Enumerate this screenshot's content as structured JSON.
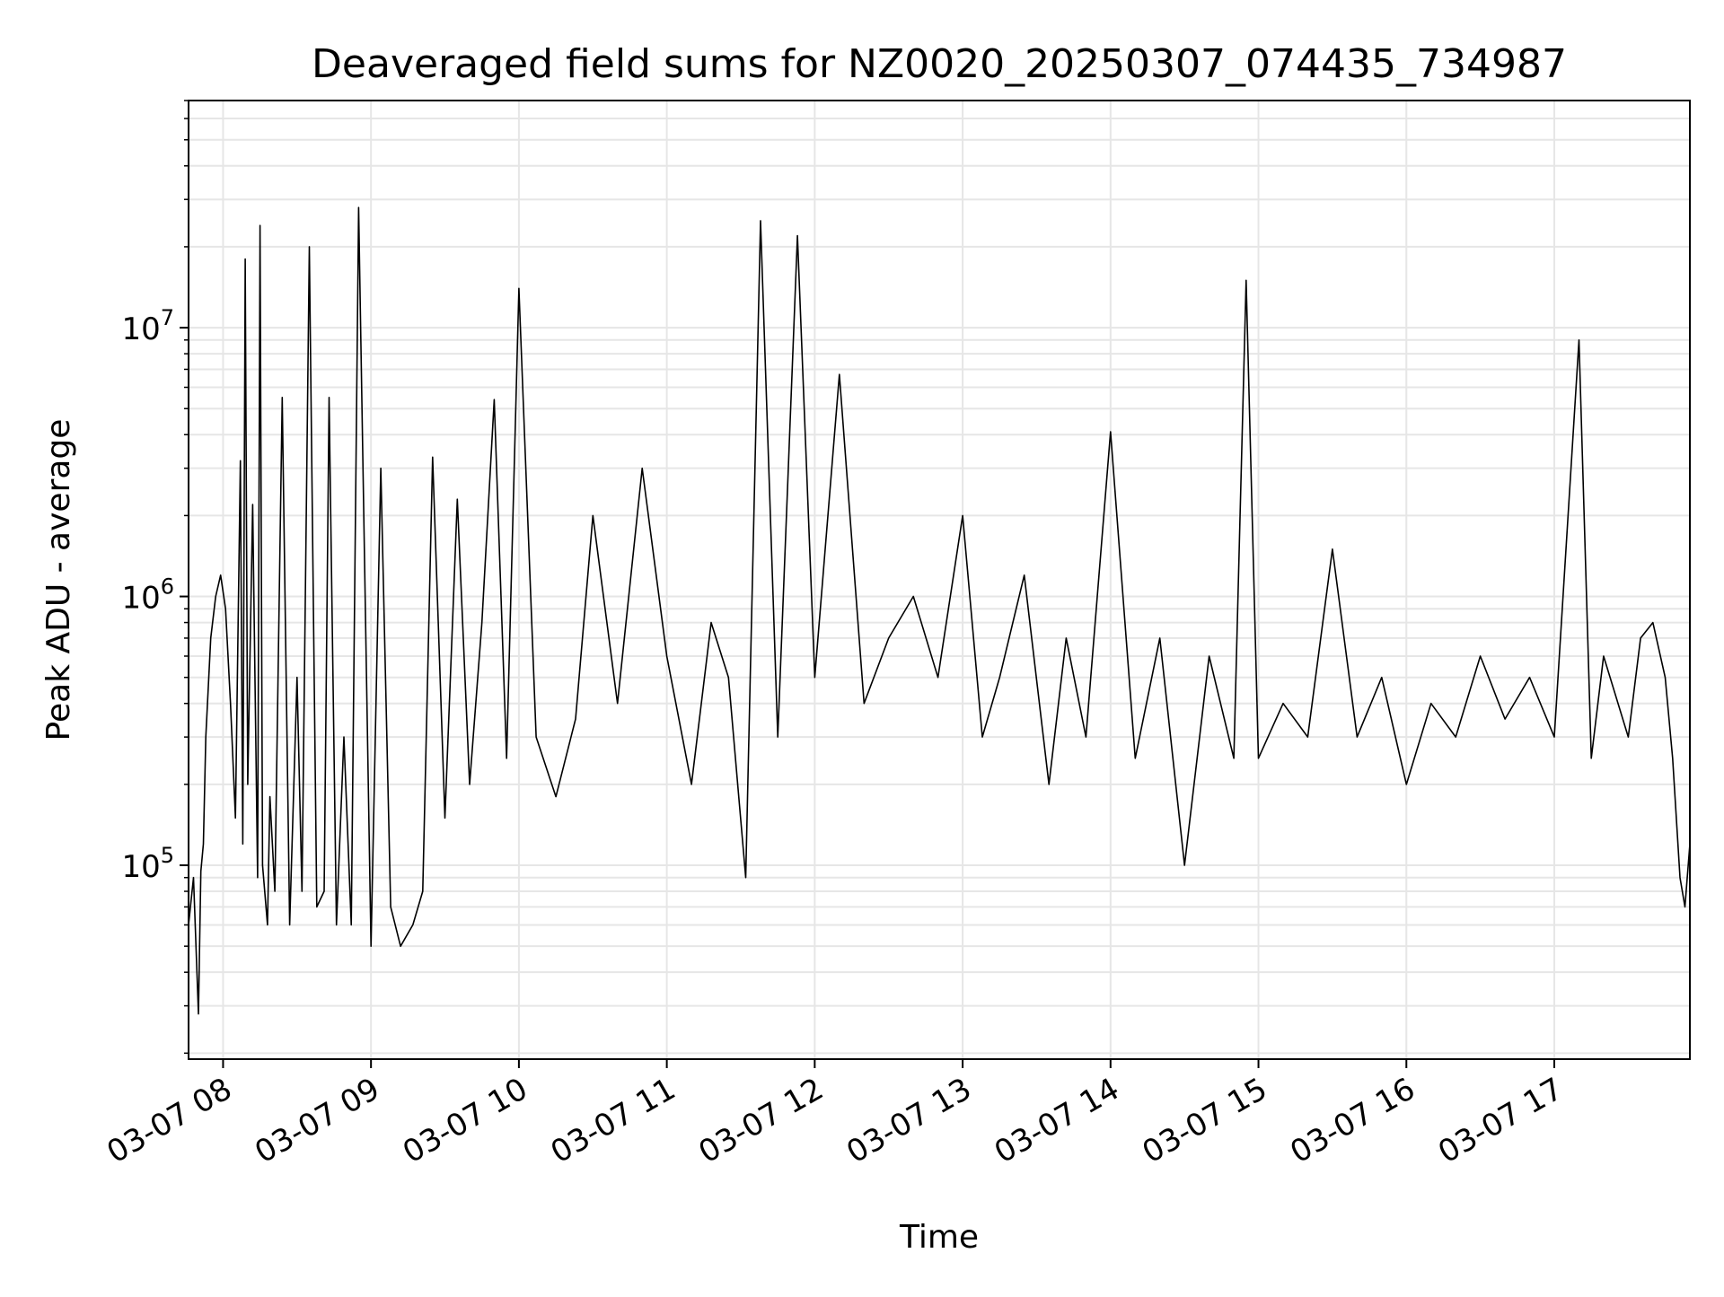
{
  "chart_data": {
    "type": "line",
    "title": "Deaveraged field sums for NZ0020_20250307_074435_734987",
    "xlabel": "Time",
    "ylabel": "Peak ADU - average",
    "x_scale": "time",
    "y_scale": "log",
    "xlim": [
      "2025-03-07 07:46",
      "2025-03-07 17:55"
    ],
    "ylim": [
      19000,
      70000000
    ],
    "grid": true,
    "legend": "none",
    "line_color": "#000000",
    "grid_color": "#e6e6e6",
    "x_ticks": [
      {
        "value": "2025-03-07 08:00",
        "label": "03-07 08"
      },
      {
        "value": "2025-03-07 09:00",
        "label": "03-07 09"
      },
      {
        "value": "2025-03-07 10:00",
        "label": "03-07 10"
      },
      {
        "value": "2025-03-07 11:00",
        "label": "03-07 11"
      },
      {
        "value": "2025-03-07 12:00",
        "label": "03-07 12"
      },
      {
        "value": "2025-03-07 13:00",
        "label": "03-07 13"
      },
      {
        "value": "2025-03-07 14:00",
        "label": "03-07 14"
      },
      {
        "value": "2025-03-07 15:00",
        "label": "03-07 15"
      },
      {
        "value": "2025-03-07 16:00",
        "label": "03-07 16"
      },
      {
        "value": "2025-03-07 17:00",
        "label": "03-07 17"
      }
    ],
    "y_ticks": [
      {
        "value": 100000,
        "base": "10",
        "exp": "5"
      },
      {
        "value": 1000000,
        "base": "10",
        "exp": "6"
      },
      {
        "value": 10000000,
        "base": "10",
        "exp": "7"
      }
    ],
    "series": [
      {
        "x": [
          "2025-03-07 07:46",
          "2025-03-07 07:48",
          "2025-03-07 07:50",
          "2025-03-07 07:51",
          "2025-03-07 07:52",
          "2025-03-07 07:53",
          "2025-03-07 07:55",
          "2025-03-07 07:57",
          "2025-03-07 07:59",
          "2025-03-07 08:01",
          "2025-03-07 08:03",
          "2025-03-07 08:05",
          "2025-03-07 08:07",
          "2025-03-07 08:08",
          "2025-03-07 08:09",
          "2025-03-07 08:10",
          "2025-03-07 08:12",
          "2025-03-07 08:14",
          "2025-03-07 08:15",
          "2025-03-07 08:16",
          "2025-03-07 08:18",
          "2025-03-07 08:19",
          "2025-03-07 08:21",
          "2025-03-07 08:24",
          "2025-03-07 08:27",
          "2025-03-07 08:30",
          "2025-03-07 08:32",
          "2025-03-07 08:35",
          "2025-03-07 08:38",
          "2025-03-07 08:41",
          "2025-03-07 08:43",
          "2025-03-07 08:46",
          "2025-03-07 08:49",
          "2025-03-07 08:52",
          "2025-03-07 08:55",
          "2025-03-07 09:00",
          "2025-03-07 09:04",
          "2025-03-07 09:08",
          "2025-03-07 09:12",
          "2025-03-07 09:17",
          "2025-03-07 09:21",
          "2025-03-07 09:25",
          "2025-03-07 09:30",
          "2025-03-07 09:35",
          "2025-03-07 09:40",
          "2025-03-07 09:45",
          "2025-03-07 09:50",
          "2025-03-07 09:55",
          "2025-03-07 10:00",
          "2025-03-07 10:07",
          "2025-03-07 10:15",
          "2025-03-07 10:23",
          "2025-03-07 10:30",
          "2025-03-07 10:40",
          "2025-03-07 10:50",
          "2025-03-07 11:00",
          "2025-03-07 11:10",
          "2025-03-07 11:18",
          "2025-03-07 11:25",
          "2025-03-07 11:32",
          "2025-03-07 11:38",
          "2025-03-07 11:45",
          "2025-03-07 11:53",
          "2025-03-07 12:00",
          "2025-03-07 12:10",
          "2025-03-07 12:20",
          "2025-03-07 12:30",
          "2025-03-07 12:40",
          "2025-03-07 12:50",
          "2025-03-07 13:00",
          "2025-03-07 13:08",
          "2025-03-07 13:15",
          "2025-03-07 13:25",
          "2025-03-07 13:35",
          "2025-03-07 13:42",
          "2025-03-07 13:50",
          "2025-03-07 14:00",
          "2025-03-07 14:10",
          "2025-03-07 14:20",
          "2025-03-07 14:30",
          "2025-03-07 14:40",
          "2025-03-07 14:50",
          "2025-03-07 14:55",
          "2025-03-07 15:00",
          "2025-03-07 15:10",
          "2025-03-07 15:20",
          "2025-03-07 15:30",
          "2025-03-07 15:40",
          "2025-03-07 15:50",
          "2025-03-07 16:00",
          "2025-03-07 16:10",
          "2025-03-07 16:20",
          "2025-03-07 16:30",
          "2025-03-07 16:40",
          "2025-03-07 16:50",
          "2025-03-07 17:00",
          "2025-03-07 17:10",
          "2025-03-07 17:15",
          "2025-03-07 17:20",
          "2025-03-07 17:30",
          "2025-03-07 17:35",
          "2025-03-07 17:40",
          "2025-03-07 17:45",
          "2025-03-07 17:48",
          "2025-03-07 17:51",
          "2025-03-07 17:53",
          "2025-03-07 17:55"
        ],
        "y": [
          60000,
          90000,
          28000,
          95000,
          120000,
          300000,
          700000,
          1000000,
          1200000,
          900000,
          400000,
          150000,
          3200000,
          120000,
          18000000,
          200000,
          2200000,
          90000,
          24000000,
          100000,
          60000,
          180000,
          80000,
          5500000,
          60000,
          500000,
          80000,
          20000000,
          70000,
          80000,
          5500000,
          60000,
          300000,
          60000,
          28000000,
          50000,
          3000000,
          70000,
          50000,
          60000,
          80000,
          3300000,
          150000,
          2300000,
          200000,
          800000,
          5400000,
          250000,
          14000000,
          300000,
          180000,
          350000,
          2000000,
          400000,
          3000000,
          600000,
          200000,
          800000,
          500000,
          90000,
          25000000,
          300000,
          22000000,
          500000,
          6700000,
          400000,
          700000,
          1000000,
          500000,
          2000000,
          300000,
          500000,
          1200000,
          200000,
          700000,
          300000,
          4100000,
          250000,
          700000,
          100000,
          600000,
          250000,
          15000000,
          250000,
          400000,
          300000,
          1500000,
          300000,
          500000,
          200000,
          400000,
          300000,
          600000,
          350000,
          500000,
          300000,
          9000000,
          250000,
          600000,
          300000,
          700000,
          800000,
          500000,
          250000,
          90000,
          70000,
          120000
        ]
      }
    ]
  }
}
